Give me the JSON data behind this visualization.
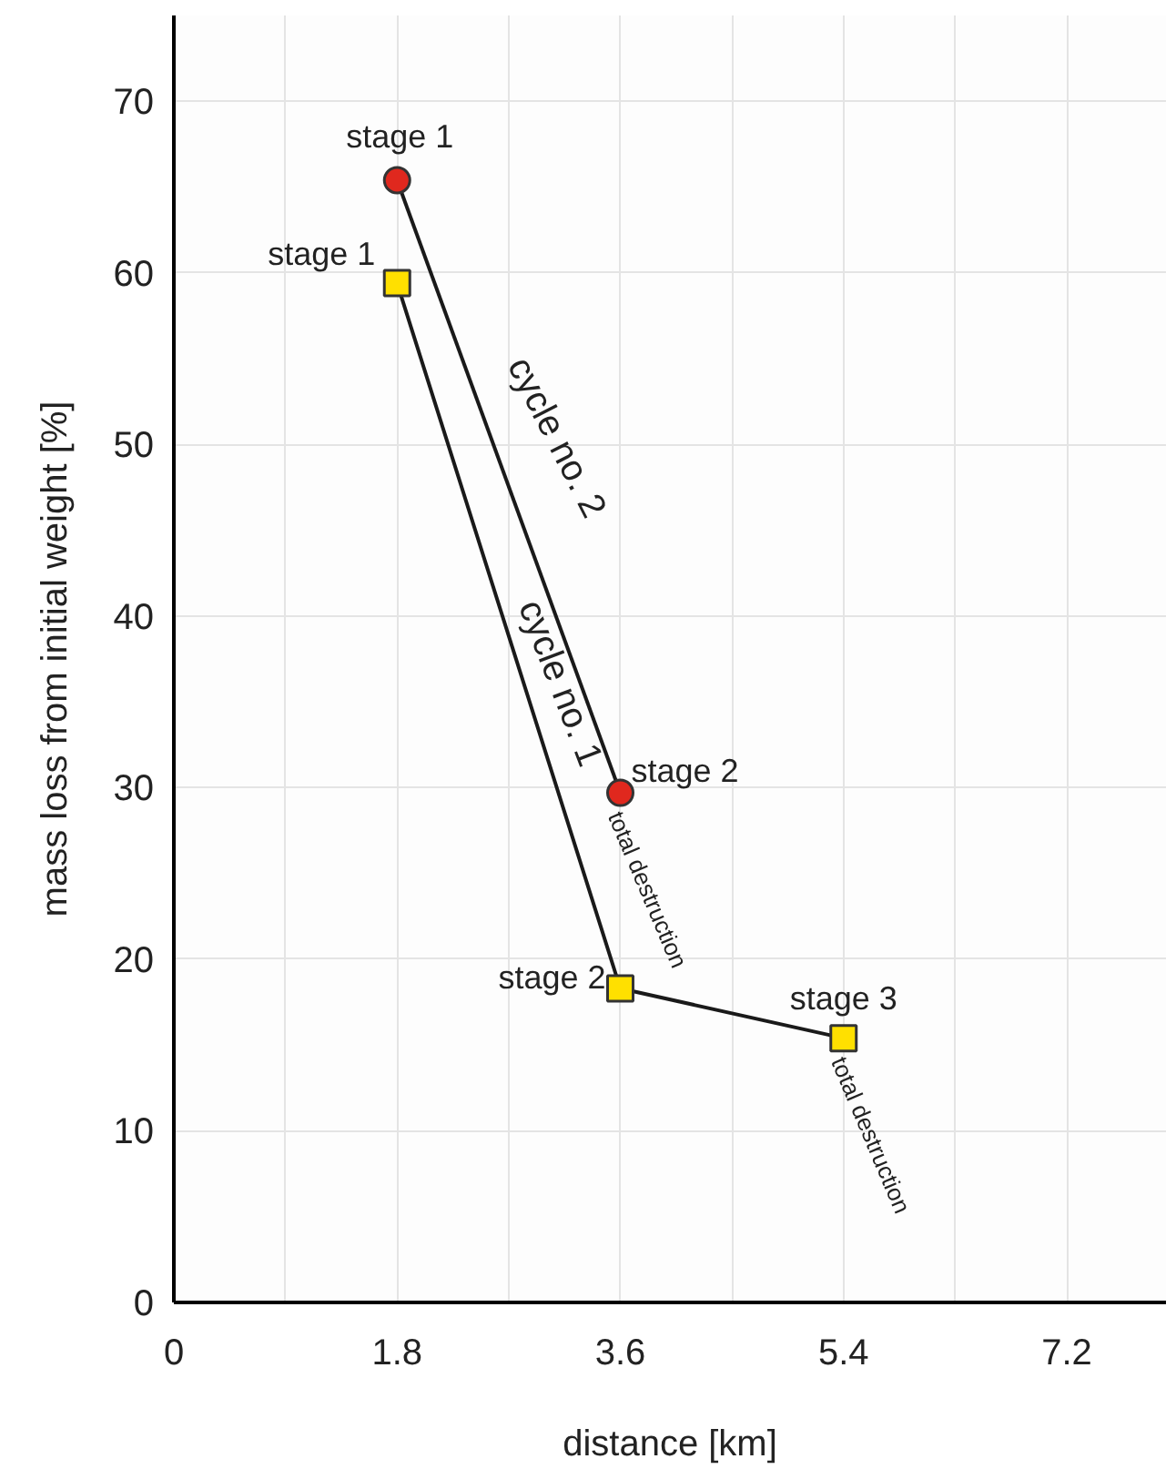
{
  "chart_data": {
    "type": "line",
    "xlabel": "distance [km]",
    "ylabel": "mass loss from initial weight [%]",
    "xlim": [
      0,
      8
    ],
    "ylim": [
      0,
      75
    ],
    "xticks": [
      0,
      {
        "value": 0.9,
        "label": null
      },
      1.8,
      {
        "value": 2.7,
        "label": null
      },
      3.6,
      {
        "value": 4.5,
        "label": null
      },
      5.4,
      {
        "value": 6.3,
        "label": null
      },
      7.2
    ],
    "yticks": [
      0,
      10,
      20,
      30,
      40,
      50,
      60,
      70
    ],
    "grid": true,
    "line_style": "solid",
    "series": [
      {
        "x": [
          1.8,
          3.6
        ],
        "values": [
          65.4,
          29.7
        ],
        "color": "#e0281e",
        "marker": "circle"
      },
      {
        "x": [
          1.8,
          3.6,
          5.4
        ],
        "values": [
          59.4,
          18.3,
          15.4
        ],
        "color": "#ffe000",
        "marker": "square"
      }
    ],
    "annotations": [
      {
        "text": "stage 1",
        "x": 1.8,
        "y": 65.4
      },
      {
        "text": "stage 1",
        "x": 1.8,
        "y": 59.4
      },
      {
        "text": "stage 2",
        "x": 3.6,
        "y": 29.7
      },
      {
        "text": "stage 2",
        "x": 3.6,
        "y": 18.3
      },
      {
        "text": "stage 3",
        "x": 5.4,
        "y": 15.4
      },
      "cycle no. 2",
      "cycle no. 1",
      {
        "text": "total destruction",
        "x": 3.6,
        "y": 29.7
      },
      {
        "text": "total destruction",
        "x": 5.4,
        "y": 15.4
      }
    ]
  }
}
